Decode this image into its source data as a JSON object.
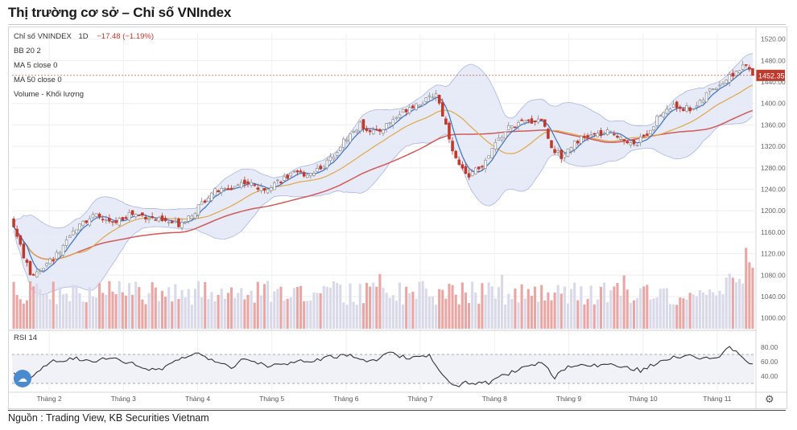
{
  "title": "Thị trường cơ sở – Chỉ số VNIndex",
  "source": "Nguồn : Trading View, KB Securities Vietnam",
  "legend": {
    "symbol": "Chỉ số VNINDEX",
    "interval": "1D",
    "change": "−17.48 (−1.19%)",
    "bb": "BB 20 2",
    "ma5": "MA 5 close 0",
    "ma50": "MA 50 close 0",
    "volume": "Volume - Khối lượng",
    "rsi": "RSI 14"
  },
  "last_price_label": "1452.35",
  "icons": {
    "logo": "tradingview-cloud-icon",
    "settings": "gear-icon"
  },
  "colors": {
    "up": "#8d8d8d",
    "down": "#c0392b",
    "ma5": "#3a72c4",
    "ma20": "#e0a84a",
    "ma50": "#d05a5a",
    "bb_fill": "#e4e8f6",
    "rsi": "#333333",
    "vol_up": "#d9d9ea",
    "vol_down": "#e8a7a4"
  },
  "chart_data": {
    "type": "candlestick",
    "price_axis": {
      "min": 980,
      "max": 1530,
      "ticks": [
        1520,
        1480,
        1440,
        1400,
        1360,
        1320,
        1280,
        1240,
        1200,
        1160,
        1120,
        1080,
        1040,
        1000
      ]
    },
    "rsi_axis": {
      "min": 20,
      "max": 100,
      "ticks": [
        80,
        60,
        40
      ],
      "bands": [
        70,
        30
      ]
    },
    "x_labels": [
      "Tháng 2",
      "Tháng 3",
      "Tháng 4",
      "Tháng 5",
      "Tháng 6",
      "Tháng 7",
      "Tháng 8",
      "Tháng 9",
      "Tháng 10",
      "Tháng 11"
    ],
    "last_price": 1452.35,
    "close_anchors": [
      [
        0,
        1170
      ],
      [
        5,
        1080
      ],
      [
        10,
        1100
      ],
      [
        15,
        1130
      ],
      [
        20,
        1180
      ],
      [
        25,
        1190
      ],
      [
        30,
        1175
      ],
      [
        35,
        1195
      ],
      [
        40,
        1190
      ],
      [
        45,
        1180
      ],
      [
        50,
        1175
      ],
      [
        55,
        1200
      ],
      [
        60,
        1235
      ],
      [
        65,
        1240
      ],
      [
        70,
        1255
      ],
      [
        75,
        1240
      ],
      [
        80,
        1255
      ],
      [
        85,
        1268
      ],
      [
        90,
        1270
      ],
      [
        95,
        1290
      ],
      [
        100,
        1330
      ],
      [
        105,
        1360
      ],
      [
        110,
        1345
      ],
      [
        115,
        1370
      ],
      [
        120,
        1395
      ],
      [
        125,
        1405
      ],
      [
        128,
        1420
      ],
      [
        131,
        1360
      ],
      [
        134,
        1295
      ],
      [
        137,
        1265
      ],
      [
        140,
        1275
      ],
      [
        143,
        1290
      ],
      [
        146,
        1325
      ],
      [
        150,
        1355
      ],
      [
        155,
        1365
      ],
      [
        160,
        1372
      ],
      [
        163,
        1320
      ],
      [
        166,
        1300
      ],
      [
        170,
        1330
      ],
      [
        175,
        1340
      ],
      [
        180,
        1345
      ],
      [
        184,
        1340
      ],
      [
        188,
        1320
      ],
      [
        192,
        1345
      ],
      [
        196,
        1380
      ],
      [
        200,
        1395
      ],
      [
        205,
        1390
      ],
      [
        208,
        1400
      ],
      [
        211,
        1425
      ],
      [
        215,
        1440
      ],
      [
        219,
        1460
      ],
      [
        222,
        1470
      ],
      [
        224,
        1452
      ]
    ],
    "rsi_anchors": [
      [
        0,
        45
      ],
      [
        4,
        33
      ],
      [
        8,
        50
      ],
      [
        12,
        60
      ],
      [
        18,
        65
      ],
      [
        24,
        62
      ],
      [
        30,
        64
      ],
      [
        36,
        57
      ],
      [
        40,
        50
      ],
      [
        44,
        48
      ],
      [
        50,
        65
      ],
      [
        56,
        70
      ],
      [
        62,
        60
      ],
      [
        66,
        53
      ],
      [
        70,
        65
      ],
      [
        76,
        55
      ],
      [
        82,
        56
      ],
      [
        90,
        62
      ],
      [
        96,
        66
      ],
      [
        102,
        70
      ],
      [
        108,
        60
      ],
      [
        114,
        72
      ],
      [
        120,
        65
      ],
      [
        126,
        70
      ],
      [
        130,
        40
      ],
      [
        134,
        25
      ],
      [
        138,
        32
      ],
      [
        144,
        30
      ],
      [
        148,
        40
      ],
      [
        154,
        50
      ],
      [
        160,
        58
      ],
      [
        164,
        38
      ],
      [
        168,
        52
      ],
      [
        176,
        55
      ],
      [
        184,
        55
      ],
      [
        190,
        48
      ],
      [
        196,
        60
      ],
      [
        204,
        70
      ],
      [
        210,
        64
      ],
      [
        214,
        65
      ],
      [
        216,
        80
      ],
      [
        220,
        72
      ],
      [
        224,
        55
      ]
    ],
    "candles": 225
  }
}
